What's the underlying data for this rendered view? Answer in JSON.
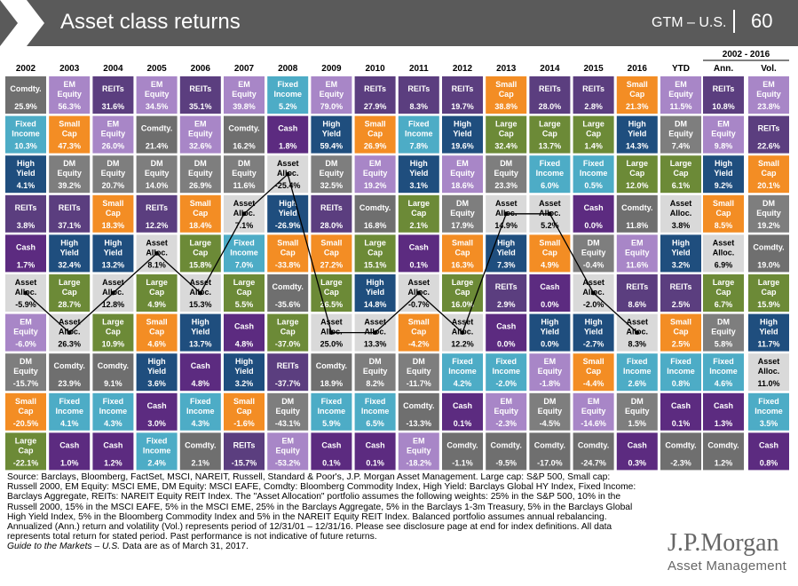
{
  "header": {
    "title": "Asset class returns",
    "gtm": "GTM – U.S.",
    "page_number": "60"
  },
  "chart_data": {
    "type": "table",
    "years": [
      "2002",
      "2003",
      "2004",
      "2005",
      "2006",
      "2007",
      "2008",
      "2009",
      "2010",
      "2011",
      "2012",
      "2013",
      "2014",
      "2015",
      "2016",
      "YTD"
    ],
    "summary_span": "2002 - 2016",
    "summary_headers": [
      "Ann.",
      "Vol."
    ],
    "asset_colors": {
      "Comdty.": "#6f6f6f",
      "EM Equity": "#a886c7",
      "REITs": "#5b3e7f",
      "Fixed Income": "#4dacc6",
      "Small Cap": "#f38d24",
      "Cash": "#5c2b80",
      "High Yield": "#1f4e7e",
      "Large Cap": "#6c8a37",
      "DM Equity": "#7e7e7e",
      "Asset Alloc.": "#d9d9d9"
    },
    "columns": [
      [
        [
          "Comdty.",
          "25.9%"
        ],
        [
          "Fixed Income",
          "10.3%"
        ],
        [
          "High Yield",
          "4.1%"
        ],
        [
          "REITs",
          "3.8%"
        ],
        [
          "Cash",
          "1.7%"
        ],
        [
          "Asset Alloc.",
          "-5.9%"
        ],
        [
          "EM Equity",
          "-6.0%"
        ],
        [
          "DM Equity",
          "-15.7%"
        ],
        [
          "Small Cap",
          "-20.5%"
        ],
        [
          "Large Cap",
          "-22.1%"
        ]
      ],
      [
        [
          "EM Equity",
          "56.3%"
        ],
        [
          "Small Cap",
          "47.3%"
        ],
        [
          "DM Equity",
          "39.2%"
        ],
        [
          "REITs",
          "37.1%"
        ],
        [
          "High Yield",
          "32.4%"
        ],
        [
          "Large Cap",
          "28.7%"
        ],
        [
          "Asset Alloc.",
          "26.3%"
        ],
        [
          "Comdty.",
          "23.9%"
        ],
        [
          "Fixed Income",
          "4.1%"
        ],
        [
          "Cash",
          "1.0%"
        ]
      ],
      [
        [
          "REITs",
          "31.6%"
        ],
        [
          "EM Equity",
          "26.0%"
        ],
        [
          "DM Equity",
          "20.7%"
        ],
        [
          "Small Cap",
          "18.3%"
        ],
        [
          "High Yield",
          "13.2%"
        ],
        [
          "Asset Alloc.",
          "12.8%"
        ],
        [
          "Large Cap",
          "10.9%"
        ],
        [
          "Comdty.",
          "9.1%"
        ],
        [
          "Fixed Income",
          "4.3%"
        ],
        [
          "Cash",
          "1.2%"
        ]
      ],
      [
        [
          "EM Equity",
          "34.5%"
        ],
        [
          "Comdty.",
          "21.4%"
        ],
        [
          "DM Equity",
          "14.0%"
        ],
        [
          "REITs",
          "12.2%"
        ],
        [
          "Asset Alloc.",
          "8.1%"
        ],
        [
          "Large Cap",
          "4.9%"
        ],
        [
          "Small Cap",
          "4.6%"
        ],
        [
          "High Yield",
          "3.6%"
        ],
        [
          "Cash",
          "3.0%"
        ],
        [
          "Fixed Income",
          "2.4%"
        ]
      ],
      [
        [
          "REITs",
          "35.1%"
        ],
        [
          "EM Equity",
          "32.6%"
        ],
        [
          "DM Equity",
          "26.9%"
        ],
        [
          "Small Cap",
          "18.4%"
        ],
        [
          "Large Cap",
          "15.8%"
        ],
        [
          "Asset Alloc.",
          "15.3%"
        ],
        [
          "High Yield",
          "13.7%"
        ],
        [
          "Cash",
          "4.8%"
        ],
        [
          "Fixed Income",
          "4.3%"
        ],
        [
          "Comdty.",
          "2.1%"
        ]
      ],
      [
        [
          "EM Equity",
          "39.8%"
        ],
        [
          "Comdty.",
          "16.2%"
        ],
        [
          "DM Equity",
          "11.6%"
        ],
        [
          "Asset Alloc.",
          "7.1%"
        ],
        [
          "Fixed Income",
          "7.0%"
        ],
        [
          "Large Cap",
          "5.5%"
        ],
        [
          "Cash",
          "4.8%"
        ],
        [
          "High Yield",
          "3.2%"
        ],
        [
          "Small Cap",
          "-1.6%"
        ],
        [
          "REITs",
          "-15.7%"
        ]
      ],
      [
        [
          "Fixed Income",
          "5.2%"
        ],
        [
          "Cash",
          "1.8%"
        ],
        [
          "Asset Alloc.",
          "-25.4%"
        ],
        [
          "High Yield",
          "-26.9%"
        ],
        [
          "Small Cap",
          "-33.8%"
        ],
        [
          "Comdty.",
          "-35.6%"
        ],
        [
          "Large Cap",
          "-37.0%"
        ],
        [
          "REITs",
          "-37.7%"
        ],
        [
          "DM Equity",
          "-43.1%"
        ],
        [
          "EM Equity",
          "-53.2%"
        ]
      ],
      [
        [
          "EM Equity",
          "79.0%"
        ],
        [
          "High Yield",
          "59.4%"
        ],
        [
          "DM Equity",
          "32.5%"
        ],
        [
          "REITs",
          "28.0%"
        ],
        [
          "Small Cap",
          "27.2%"
        ],
        [
          "Large Cap",
          "26.5%"
        ],
        [
          "Asset Alloc.",
          "25.0%"
        ],
        [
          "Comdty.",
          "18.9%"
        ],
        [
          "Fixed Income",
          "5.9%"
        ],
        [
          "Cash",
          "0.1%"
        ]
      ],
      [
        [
          "REITs",
          "27.9%"
        ],
        [
          "Small Cap",
          "26.9%"
        ],
        [
          "EM Equity",
          "19.2%"
        ],
        [
          "Comdty.",
          "16.8%"
        ],
        [
          "Large Cap",
          "15.1%"
        ],
        [
          "High Yield",
          "14.8%"
        ],
        [
          "Asset Alloc.",
          "13.3%"
        ],
        [
          "DM Equity",
          "8.2%"
        ],
        [
          "Fixed Income",
          "6.5%"
        ],
        [
          "Cash",
          "0.1%"
        ]
      ],
      [
        [
          "REITs",
          "8.3%"
        ],
        [
          "Fixed Income",
          "7.8%"
        ],
        [
          "High Yield",
          "3.1%"
        ],
        [
          "Large Cap",
          "2.1%"
        ],
        [
          "Cash",
          "0.1%"
        ],
        [
          "Asset Alloc.",
          "-0.7%"
        ],
        [
          "Small Cap",
          "-4.2%"
        ],
        [
          "DM Equity",
          "-11.7%"
        ],
        [
          "Comdty.",
          "-13.3%"
        ],
        [
          "EM Equity",
          "-18.2%"
        ]
      ],
      [
        [
          "REITs",
          "19.7%"
        ],
        [
          "High Yield",
          "19.6%"
        ],
        [
          "EM Equity",
          "18.6%"
        ],
        [
          "DM Equity",
          "17.9%"
        ],
        [
          "Small Cap",
          "16.3%"
        ],
        [
          "Large Cap",
          "16.0%"
        ],
        [
          "Asset Alloc.",
          "12.2%"
        ],
        [
          "Fixed Income",
          "4.2%"
        ],
        [
          "Cash",
          "0.1%"
        ],
        [
          "Comdty.",
          "-1.1%"
        ]
      ],
      [
        [
          "Small Cap",
          "38.8%"
        ],
        [
          "Large Cap",
          "32.4%"
        ],
        [
          "DM Equity",
          "23.3%"
        ],
        [
          "Asset Alloc.",
          "14.9%"
        ],
        [
          "High Yield",
          "7.3%"
        ],
        [
          "REITs",
          "2.9%"
        ],
        [
          "Cash",
          "0.0%"
        ],
        [
          "Fixed Income",
          "-2.0%"
        ],
        [
          "EM Equity",
          "-2.3%"
        ],
        [
          "Comdty.",
          "-9.5%"
        ]
      ],
      [
        [
          "REITs",
          "28.0%"
        ],
        [
          "Large Cap",
          "13.7%"
        ],
        [
          "Fixed Income",
          "6.0%"
        ],
        [
          "Asset Alloc.",
          "5.2%"
        ],
        [
          "Small Cap",
          "4.9%"
        ],
        [
          "Cash",
          "0.0%"
        ],
        [
          "High Yield",
          "0.0%"
        ],
        [
          "EM Equity",
          "-1.8%"
        ],
        [
          "DM Equity",
          "-4.5%"
        ],
        [
          "Comdty.",
          "-17.0%"
        ]
      ],
      [
        [
          "REITs",
          "2.8%"
        ],
        [
          "Large Cap",
          "1.4%"
        ],
        [
          "Fixed Income",
          "0.5%"
        ],
        [
          "Cash",
          "0.0%"
        ],
        [
          "DM Equity",
          "-0.4%"
        ],
        [
          "Asset Alloc.",
          "-2.0%"
        ],
        [
          "High Yield",
          "-2.7%"
        ],
        [
          "Small Cap",
          "-4.4%"
        ],
        [
          "EM Equity",
          "-14.6%"
        ],
        [
          "Comdty.",
          "-24.7%"
        ]
      ],
      [
        [
          "Small Cap",
          "21.3%"
        ],
        [
          "High Yield",
          "14.3%"
        ],
        [
          "Large Cap",
          "12.0%"
        ],
        [
          "Comdty.",
          "11.8%"
        ],
        [
          "EM Equity",
          "11.6%"
        ],
        [
          "REITs",
          "8.6%"
        ],
        [
          "Asset Alloc.",
          "8.3%"
        ],
        [
          "Fixed Income",
          "2.6%"
        ],
        [
          "DM Equity",
          "1.5%"
        ],
        [
          "Cash",
          "0.3%"
        ]
      ],
      [
        [
          "EM Equity",
          "11.5%"
        ],
        [
          "DM Equity",
          "7.4%"
        ],
        [
          "Large Cap",
          "6.1%"
        ],
        [
          "Asset Alloc.",
          "3.8%"
        ],
        [
          "High Yield",
          "3.2%"
        ],
        [
          "REITs",
          "2.5%"
        ],
        [
          "Small Cap",
          "2.5%"
        ],
        [
          "Fixed Income",
          "0.8%"
        ],
        [
          "Cash",
          "0.1%"
        ],
        [
          "Comdty.",
          "-2.3%"
        ]
      ]
    ],
    "annual": [
      [
        "REITs",
        "10.8%"
      ],
      [
        "EM Equity",
        "9.8%"
      ],
      [
        "High Yield",
        "9.2%"
      ],
      [
        "Small Cap",
        "8.5%"
      ],
      [
        "Asset Alloc.",
        "6.9%"
      ],
      [
        "Large Cap",
        "6.7%"
      ],
      [
        "DM Equity",
        "5.8%"
      ],
      [
        "Fixed Income",
        "4.6%"
      ],
      [
        "Cash",
        "1.3%"
      ],
      [
        "Comdty.",
        "1.2%"
      ]
    ],
    "volatility": [
      [
        "EM Equity",
        "23.8%"
      ],
      [
        "REITs",
        "22.6%"
      ],
      [
        "Small Cap",
        "20.1%"
      ],
      [
        "DM Equity",
        "19.2%"
      ],
      [
        "Comdty.",
        "19.0%"
      ],
      [
        "Large Cap",
        "15.9%"
      ],
      [
        "High Yield",
        "11.7%"
      ],
      [
        "Asset Alloc.",
        "11.0%"
      ],
      [
        "Fixed Income",
        "3.5%"
      ],
      [
        "Cash",
        "0.8%"
      ]
    ],
    "highlight_series": "Asset Alloc."
  },
  "footnote": {
    "text": "Source: Barclays, Bloomberg, FactSet, MSCI, NAREIT, Russell, Standard & Poor's, J.P. Morgan Asset Management. Large cap: S&P 500, Small cap: Russell 2000, EM Equity: MSCI EME, DM Equity: MSCI EAFE, Comdty: Bloomberg Commodity Index, High Yield: Barclays Global HY Index, Fixed Income: Barclays Aggregate, REITs: NAREIT Equity REIT Index. The \"Asset Allocation\" portfolio assumes the following weights: 25% in the S&P 500, 10% in the Russell 2000, 15% in the MSCI EAFE, 5% in the MSCI EME, 25% in the Barclays Aggregate, 5% in the Barclays 1-3m Treasury, 5% in the Barclays Global High Yield Index, 5% in the Bloomberg Commodity Index and 5% in the NAREIT Equity REIT Index. Balanced portfolio assumes annual rebalancing. Annualized (Ann.) return and volatility (Vol.) represents period of 12/31/01 – 12/31/16. Please see disclosure page at end for index definitions. All data represents total return for stated period. Past performance is not indicative of future returns.",
    "guide_title": "Guide to the Markets – U.S.",
    "guide_suffix": " Data are as of March 31, 2017."
  },
  "logo": {
    "main": "J.P.Morgan",
    "sub": "Asset Management"
  }
}
